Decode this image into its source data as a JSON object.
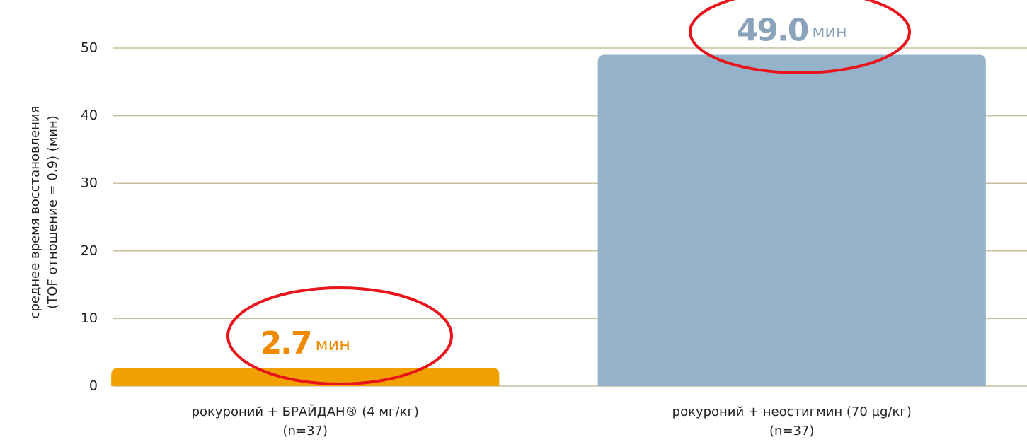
{
  "chart_data": {
    "type": "bar",
    "ylabel": [
      "среднее время восстановления",
      "(TOF отношение = 0.9) (мин)"
    ],
    "categories": [
      [
        "рокуроний + БРАЙДАН® (4 мг/кг)",
        "(n=37)"
      ],
      [
        "рокуроний + неостигмин (70 µg/кг)",
        "(n=37)"
      ]
    ],
    "values": [
      2.7,
      49.0
    ],
    "value_labels": [
      "2.7",
      "49.0"
    ],
    "value_unit": "мин",
    "colors": [
      "#f0a000",
      "#94b3cb"
    ],
    "label_colors": [
      "#ee8a00",
      "#8aa3ba"
    ],
    "ylim": [
      0,
      50
    ],
    "yticks": [
      0,
      10,
      20,
      30,
      40,
      50
    ],
    "grid": true
  }
}
